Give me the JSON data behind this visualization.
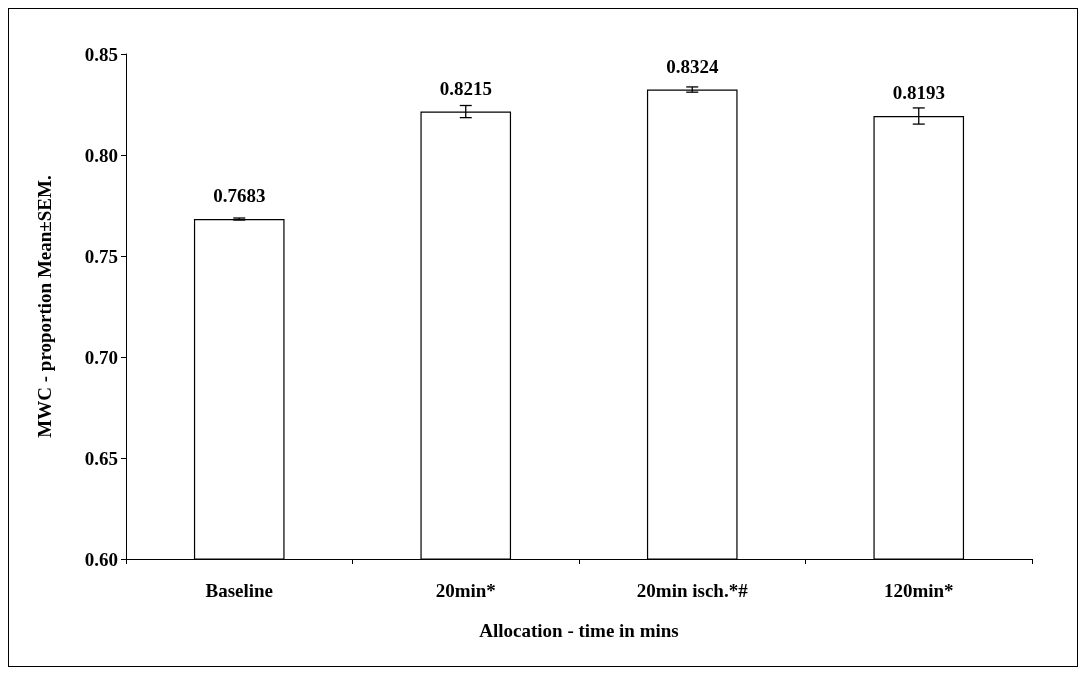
{
  "chart_data": {
    "type": "bar",
    "xlabel": "Allocation - time in mins",
    "ylabel": "MWC - proportion Mean±SEM.",
    "categories": [
      "Baseline",
      "20min*",
      "20min isch.*#",
      "120min*"
    ],
    "values": [
      0.7683,
      0.8215,
      0.8324,
      0.8193
    ],
    "errors": [
      0.0005,
      0.003,
      0.0013,
      0.004
    ],
    "color": "#ffffff",
    "ylim": [
      0.6,
      0.85
    ],
    "yticks": [
      {
        "value": 0.6,
        "label": "0.60"
      },
      0.65,
      {
        "value": 0.7,
        "label": "0.70"
      },
      0.75,
      {
        "value": 0.8,
        "label": "0.80"
      },
      0.85
    ],
    "data_labels": true,
    "grid": false
  }
}
